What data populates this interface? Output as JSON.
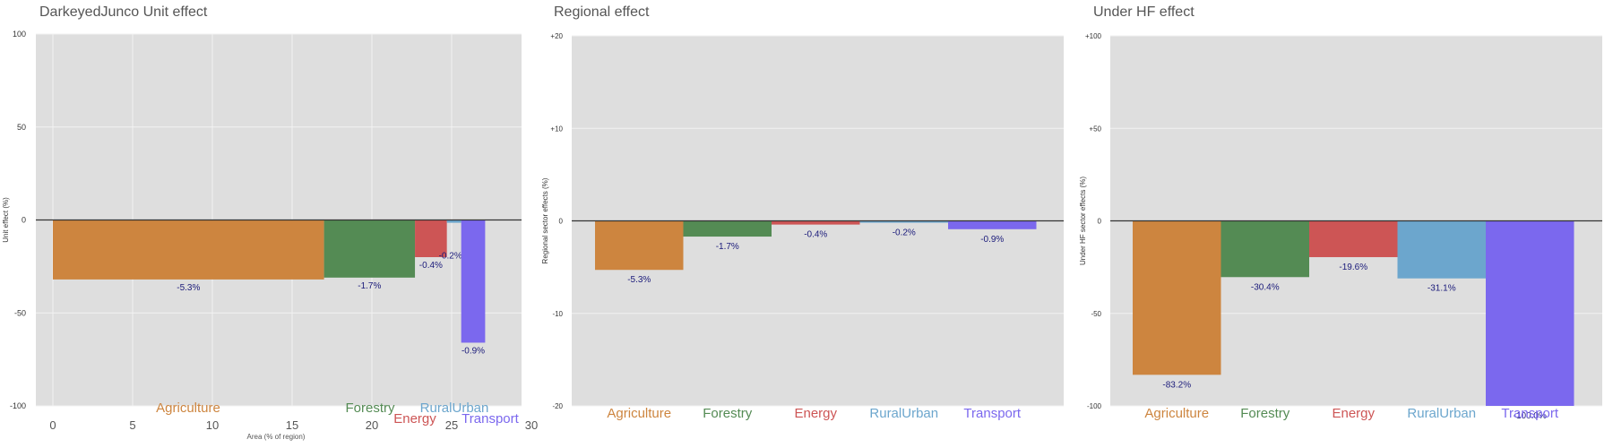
{
  "colors": {
    "panel_bg": "#dedede",
    "grid": "#f2f2f2",
    "zero_line": "#333333",
    "value_label": "#1a1a7a",
    "sector": {
      "Agriculture": "#cd853f",
      "Forestry": "#548b54",
      "Energy": "#cd5555",
      "RuralUrban": "#6ca6cd",
      "Transport": "#7b68ee"
    }
  },
  "chart_data": [
    {
      "type": "bar",
      "title": "DarkeyedJunco Unit effect",
      "xlabel": "Area (% of region)",
      "ylabel": "Unit effect (%)",
      "xlim": [
        -1,
        30
      ],
      "ylim": [
        -100,
        100
      ],
      "x_ticks": [
        "0",
        "5",
        "10",
        "15",
        "20",
        "25",
        "30"
      ],
      "y_ticks": [
        "100",
        "50",
        "0",
        "-50",
        "-100"
      ],
      "grid": true,
      "bars": [
        {
          "name": "Agriculture",
          "x_start": 0,
          "width": 17.0,
          "value": -32,
          "label": "-5.3%"
        },
        {
          "name": "Forestry",
          "x_start": 17.0,
          "width": 5.7,
          "value": -31,
          "label": "-1.7%"
        },
        {
          "name": "Energy",
          "x_start": 22.7,
          "width": 2.0,
          "value": -20,
          "label": "-0.4%"
        },
        {
          "name": "RuralUrban",
          "x_start": 24.7,
          "width": 0.9,
          "value": -1.5,
          "label": "-0.2%"
        },
        {
          "name": "Transport",
          "x_start": 25.6,
          "width": 1.5,
          "value": -66,
          "label": "-0.9%"
        }
      ]
    },
    {
      "type": "bar",
      "title": "Regional effect",
      "xlabel": "",
      "ylabel": "Regional sector effects (%)",
      "ylim": [
        -20,
        20
      ],
      "y_ticks": [
        "+20",
        "+10",
        "0",
        "-10",
        "-20"
      ],
      "grid": true,
      "categories": [
        "Agriculture",
        "Forestry",
        "Energy",
        "RuralUrban",
        "Transport"
      ],
      "values": [
        -5.3,
        -1.7,
        -0.4,
        -0.2,
        -0.9
      ],
      "labels": [
        "-5.3%",
        "-1.7%",
        "-0.4%",
        "-0.2%",
        "-0.9%"
      ]
    },
    {
      "type": "bar",
      "title": "Under HF effect",
      "xlabel": "",
      "ylabel": "Under HF sector effects (%)",
      "ylim": [
        -100,
        100
      ],
      "y_ticks": [
        "+100",
        "+50",
        "0",
        "-50",
        "-100"
      ],
      "grid": true,
      "categories": [
        "Agriculture",
        "Forestry",
        "Energy",
        "RuralUrban",
        "Transport"
      ],
      "values": [
        -83.2,
        -30.4,
        -19.6,
        -31.1,
        -100.0
      ],
      "labels": [
        "-83.2%",
        "-30.4%",
        "-19.6%",
        "-31.1%",
        "-100.0%"
      ]
    }
  ]
}
